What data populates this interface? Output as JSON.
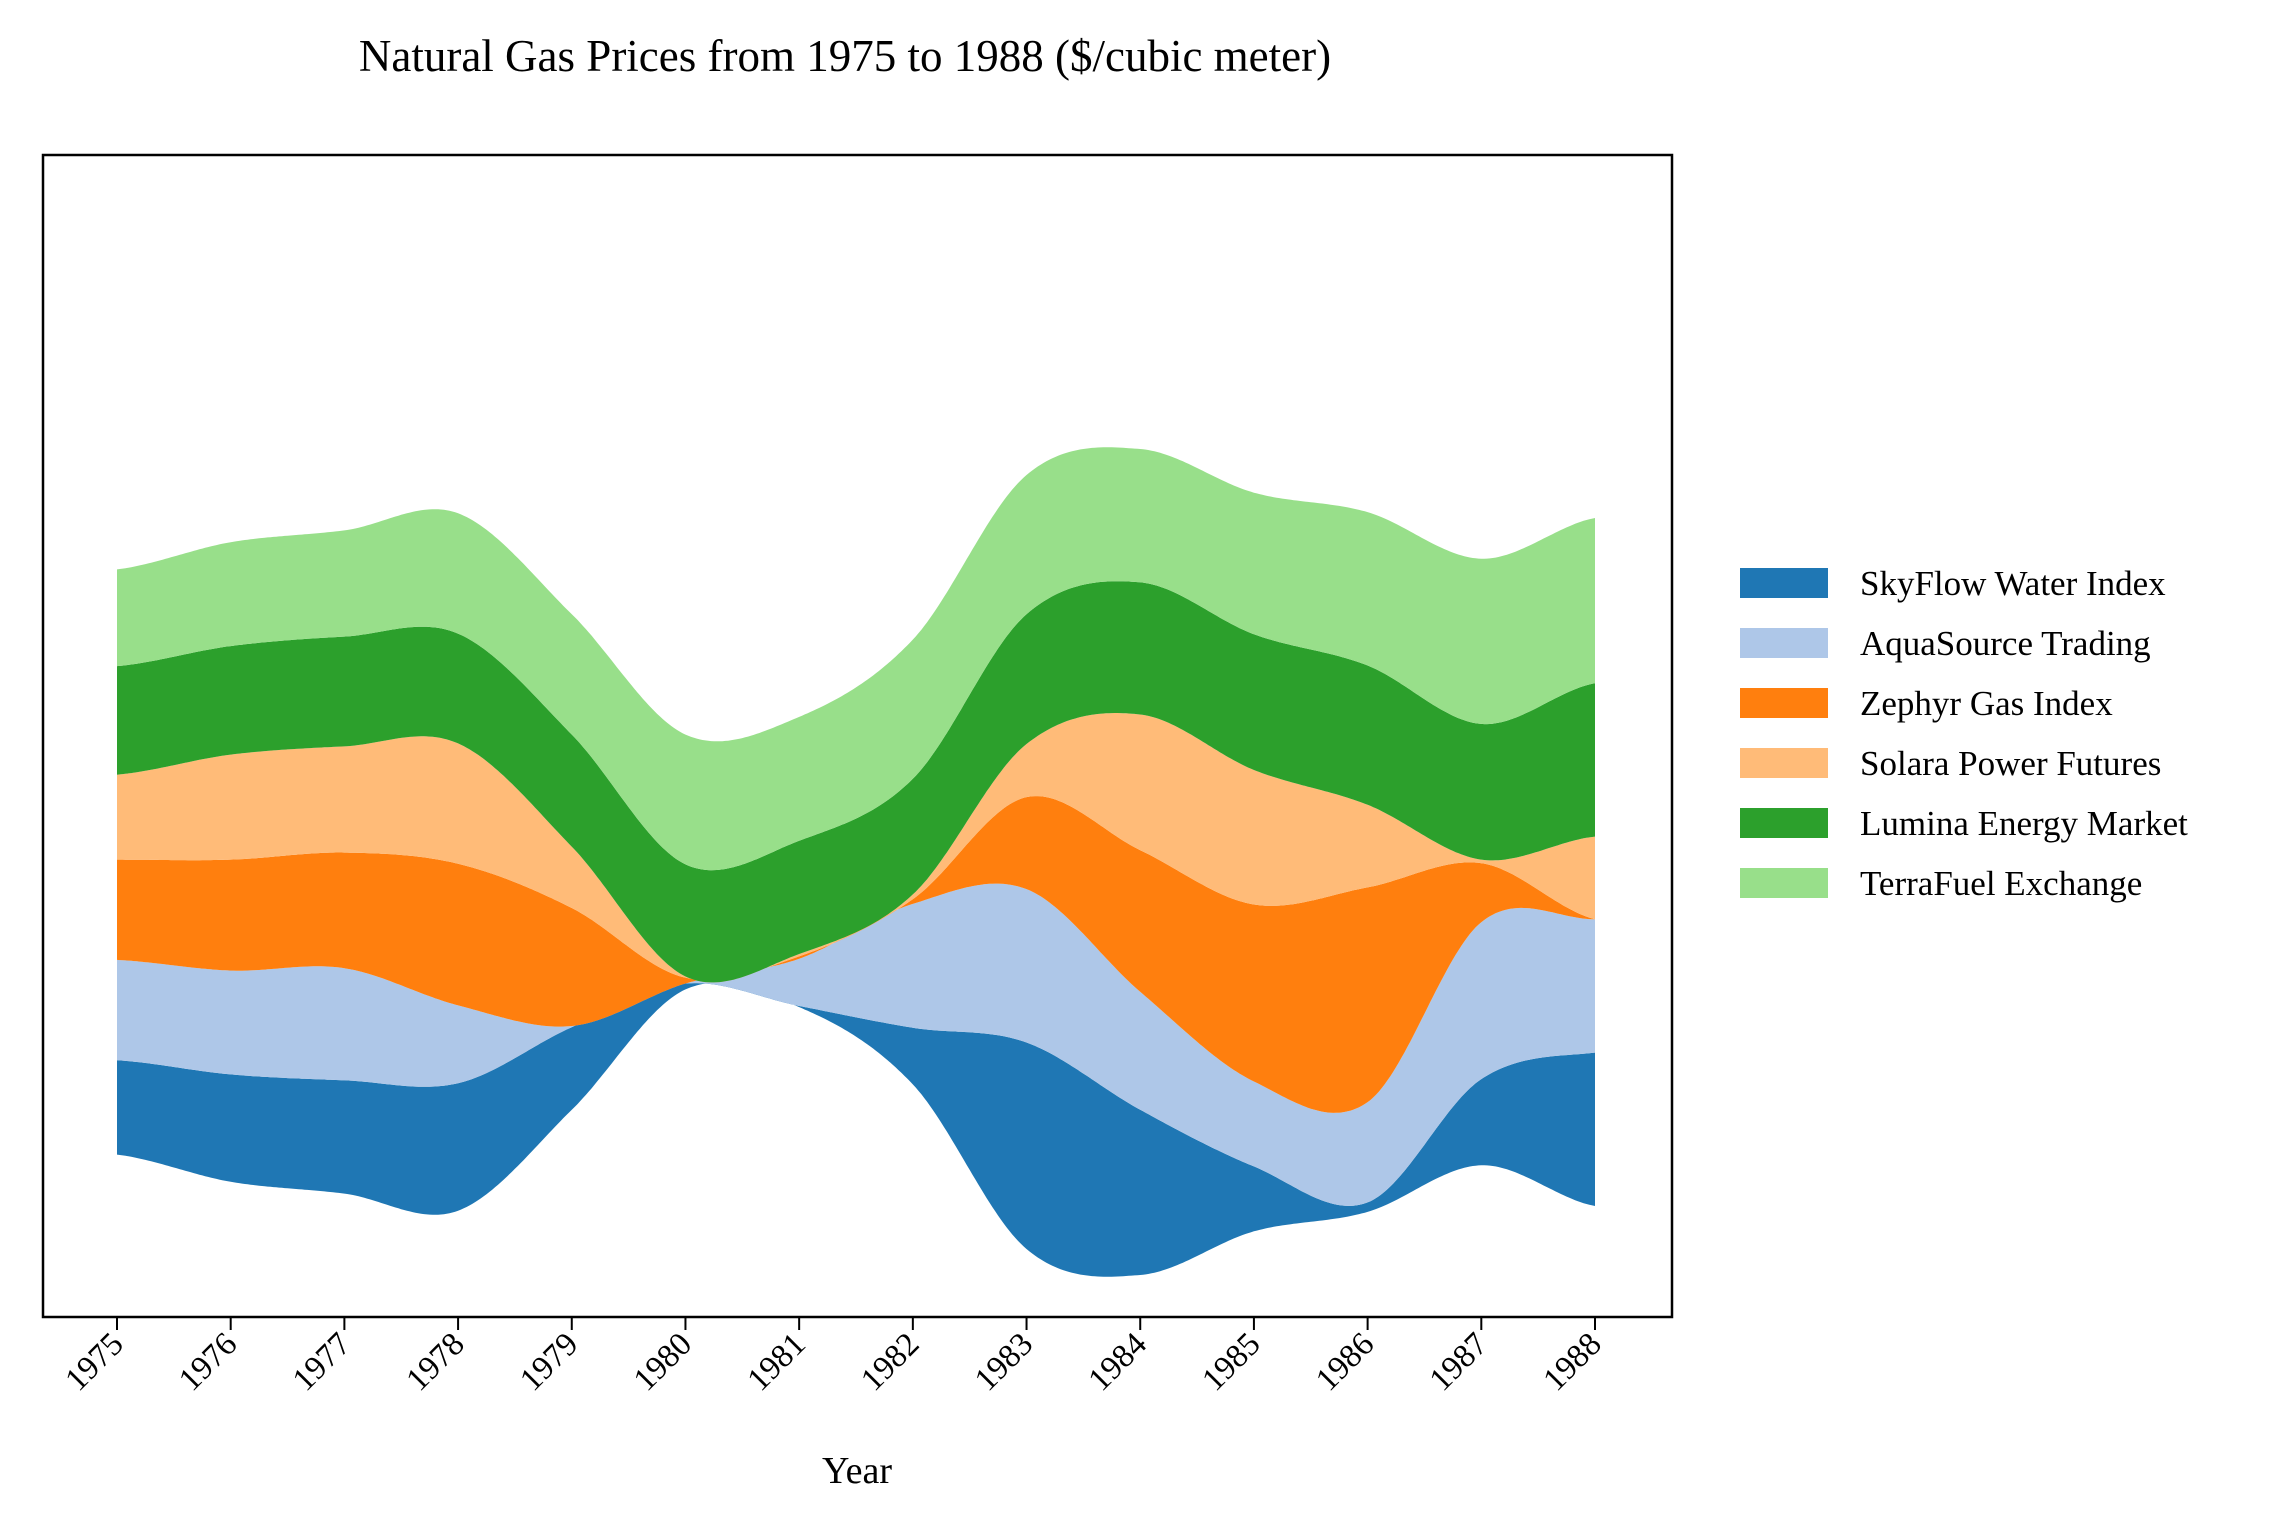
{
  "chart_data": {
    "type": "area",
    "subtype": "streamgraph",
    "title": "Natural Gas Prices from 1975 to 1988 ($/cubic meter)",
    "xlabel": "Year",
    "ylabel": "",
    "x": [
      1975,
      1976,
      1977,
      1978,
      1979,
      1980,
      1981,
      1982,
      1983,
      1984,
      1985,
      1986,
      1987,
      1988
    ],
    "categories": [
      "1975",
      "1976",
      "1977",
      "1978",
      "1979",
      "1980",
      "1981",
      "1982",
      "1983",
      "1984",
      "1985",
      "1986",
      "1987",
      "1988"
    ],
    "yaxis_visible": false,
    "grid": false,
    "legend_position": "right",
    "series": [
      {
        "name": "SkyFlow Water Index",
        "color": "#1f77b4",
        "values": [
          0.8,
          0.91,
          0.96,
          1.08,
          0.7,
          0.05,
          0.01,
          0.48,
          1.75,
          1.4,
          0.55,
          0.08,
          0.73,
          1.3
        ]
      },
      {
        "name": "AquaSource Trading",
        "color": "#aec7e8",
        "values": [
          0.85,
          0.88,
          0.95,
          0.66,
          0.01,
          0.0,
          0.4,
          1.05,
          1.3,
          1.0,
          0.72,
          0.85,
          1.33,
          1.13
        ]
      },
      {
        "name": "Zephyr Gas Index",
        "color": "#ff7f0e",
        "values": [
          0.85,
          0.94,
          0.98,
          1.2,
          1.0,
          0.05,
          0.02,
          0.04,
          0.78,
          1.2,
          1.5,
          1.82,
          0.5,
          0.0
        ]
      },
      {
        "name": "Solara Power Futures",
        "color": "#ffbb78",
        "values": [
          0.72,
          0.89,
          0.9,
          1.02,
          0.52,
          0.01,
          0.02,
          0.04,
          0.45,
          1.15,
          1.14,
          0.7,
          0.03,
          0.7
        ]
      },
      {
        "name": "Lumina Energy Market",
        "color": "#2ca02c",
        "values": [
          0.92,
          0.92,
          0.93,
          0.93,
          0.95,
          0.95,
          0.96,
          0.98,
          1.1,
          1.12,
          1.15,
          1.18,
          1.15,
          1.3
        ]
      },
      {
        "name": "TerraFuel Exchange",
        "color": "#98df8a",
        "values": [
          0.82,
          0.88,
          0.9,
          1.02,
          1.02,
          1.1,
          1.05,
          1.18,
          1.18,
          1.13,
          1.2,
          1.3,
          1.4,
          1.4
        ]
      }
    ]
  }
}
